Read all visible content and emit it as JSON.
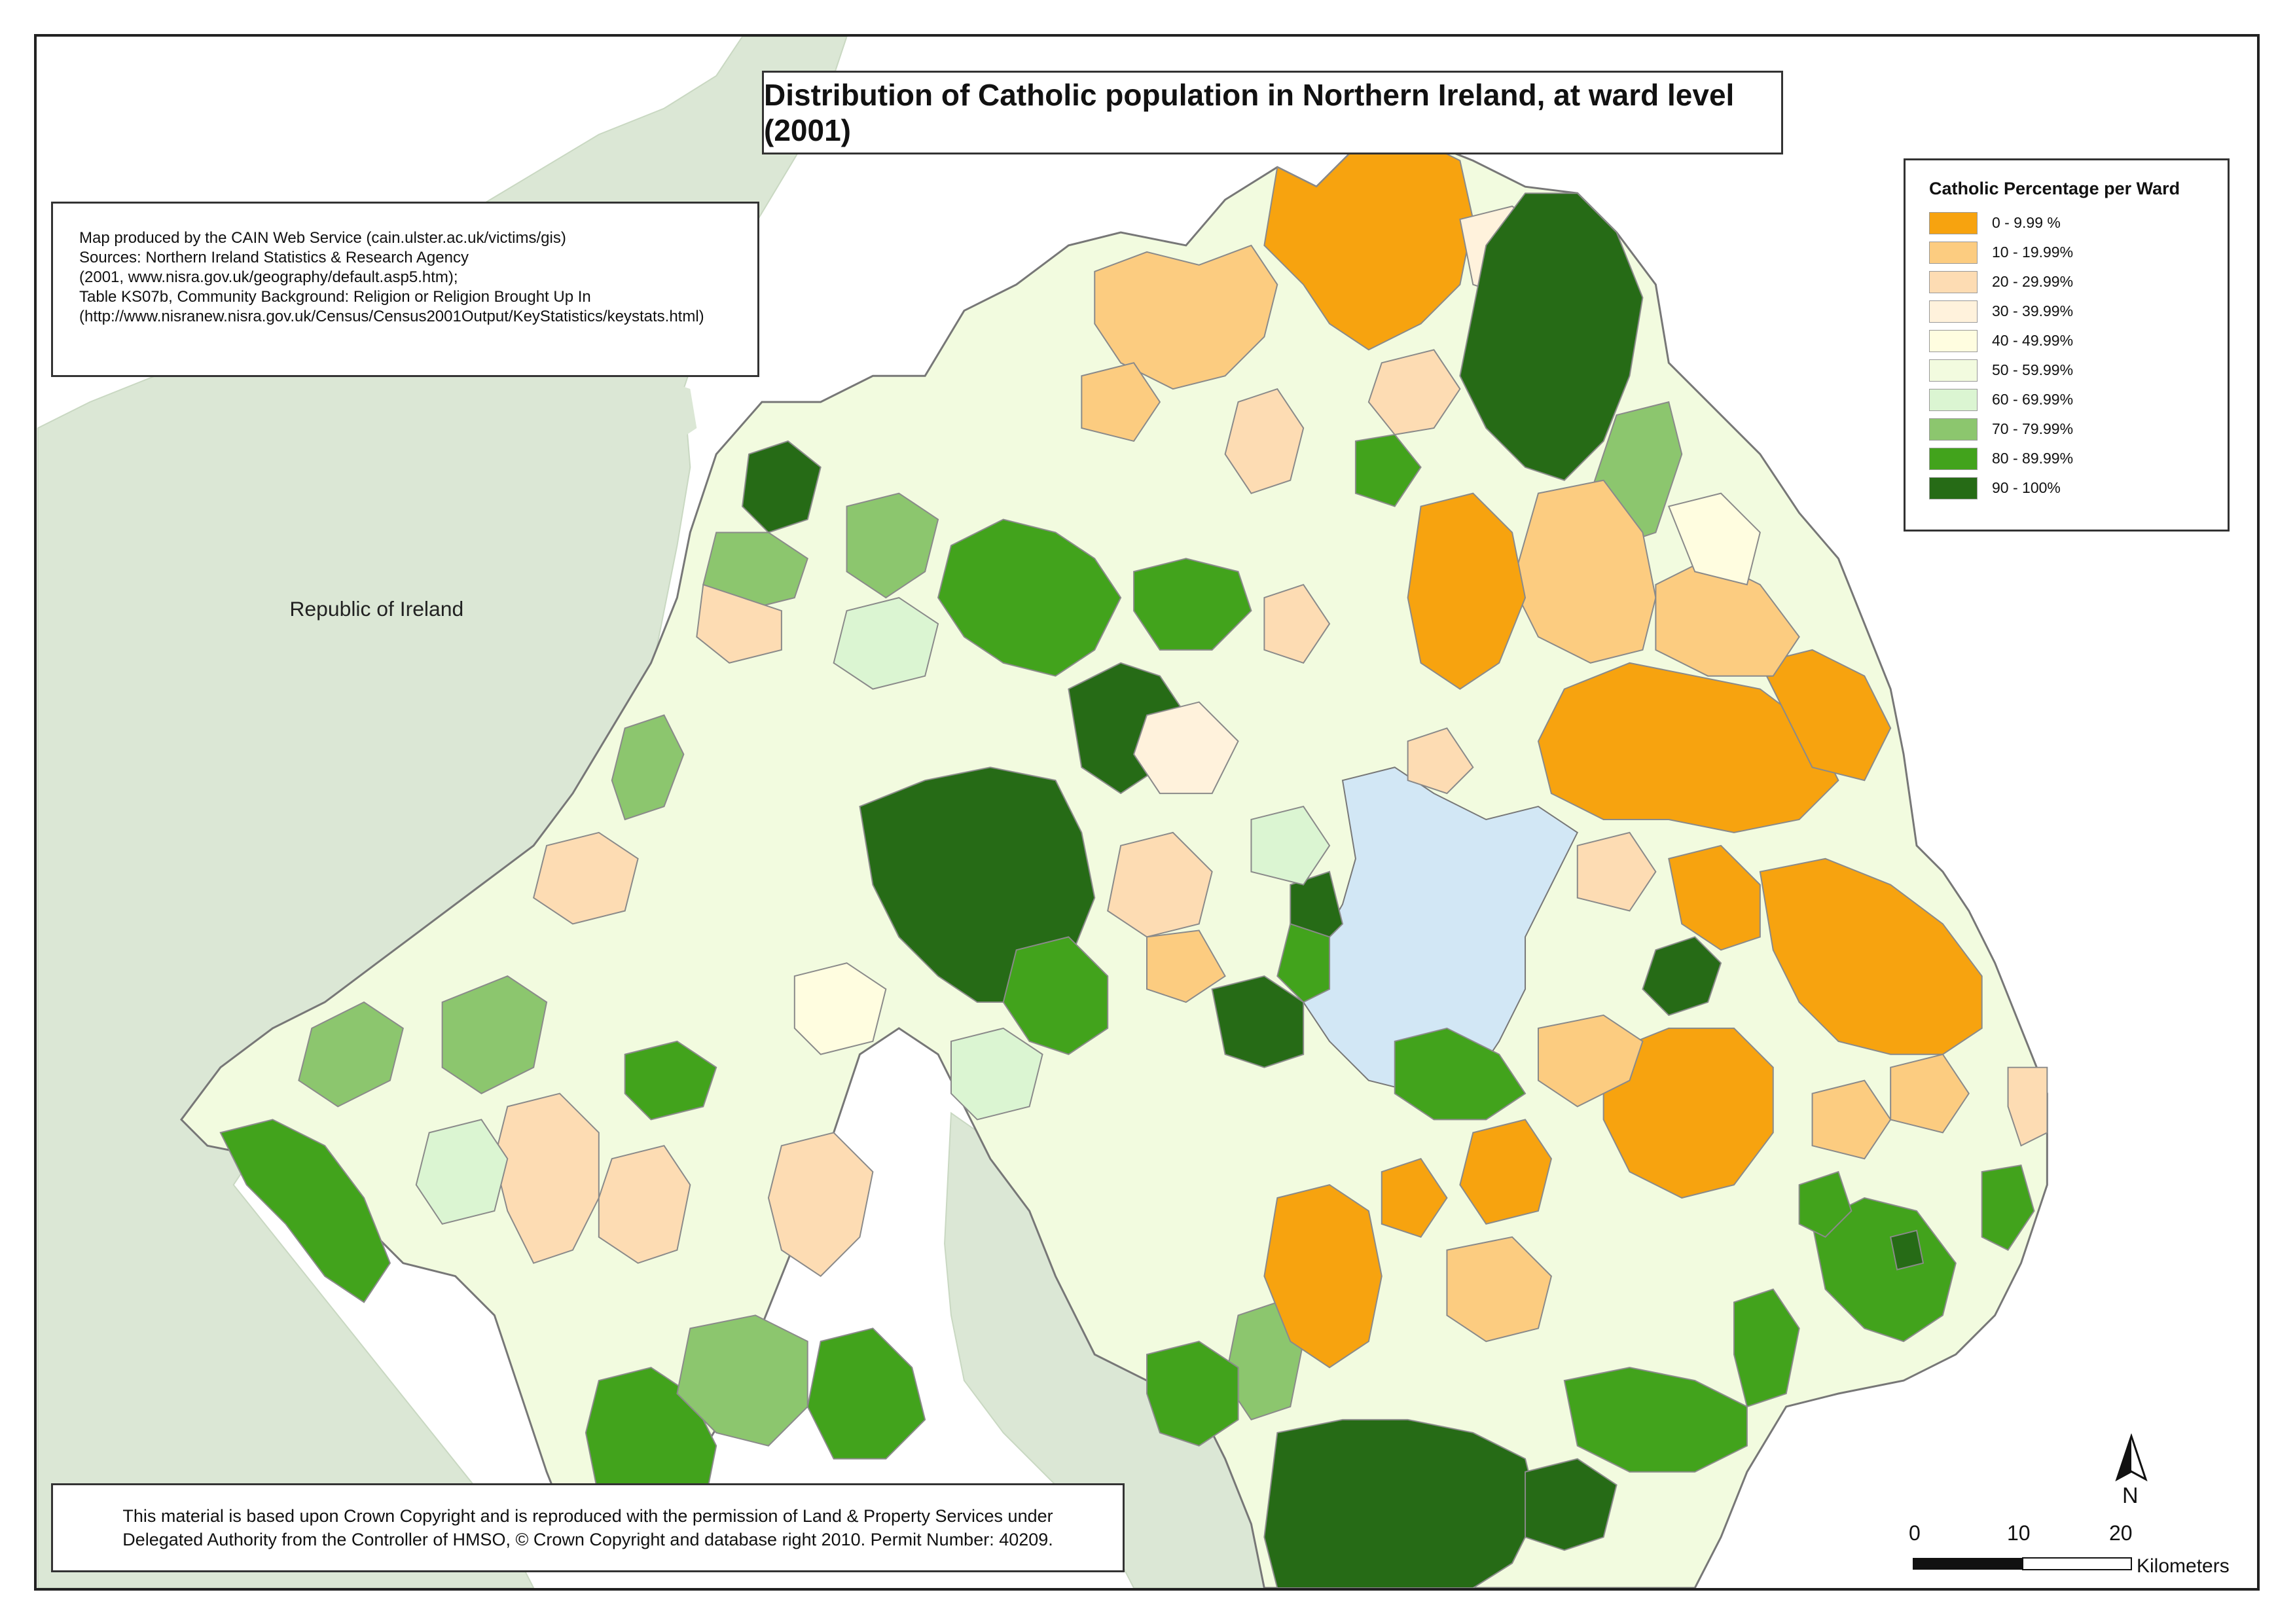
{
  "title": "Distribution of Catholic population in Northern Ireland, at ward level (2001)",
  "credits": [
    "Map produced by the CAIN Web Service (cain.ulster.ac.uk/victims/gis)",
    "Sources: Northern Ireland Statistics & Research Agency",
    "(2001, www.nisra.gov.uk/geography/default.asp5.htm);",
    "Table KS07b, Community Background: Religion or Religion Brought Up In",
    "(http://www.nisranew.nisra.gov.uk/Census/Census2001Output/KeyStatistics/keystats.html)"
  ],
  "legend": {
    "title": "Catholic Percentage per Ward",
    "items": [
      {
        "label": "0 - 9.99 %",
        "color": "#f7a30f"
      },
      {
        "label": "10 - 19.99%",
        "color": "#fccc80"
      },
      {
        "label": "20 - 29.99%",
        "color": "#fddcb3"
      },
      {
        "label": "30 - 39.99%",
        "color": "#fff2dc"
      },
      {
        "label": "40 - 49.99%",
        "color": "#fffde0"
      },
      {
        "label": "50 - 59.99%",
        "color": "#f2fbdf"
      },
      {
        "label": "60 - 69.99%",
        "color": "#dbf5d2"
      },
      {
        "label": "70 - 79.99%",
        "color": "#8cc66e"
      },
      {
        "label": "80 - 89.99%",
        "color": "#42a31c"
      },
      {
        "label": "90 - 100%",
        "color": "#266b16"
      }
    ]
  },
  "labels": {
    "republic_of_ireland": "Republic of Ireland"
  },
  "footer": [
    "This material is based upon Crown Copyright and is reproduced with the permission of Land & Property Services under",
    "Delegated Authority from the Controller of HMSO, © Crown Copyright and database right 2010. Permit Number: 40209."
  ],
  "north_arrow": "N",
  "scale_bar": {
    "ticks": [
      "0",
      "10",
      "20"
    ],
    "unit": "Kilometers"
  },
  "colors": {
    "land_outside": "#dbe7d5",
    "sea": "#ffffff",
    "lough": "#d2e7f5",
    "boundary": "#8a8a8a"
  }
}
